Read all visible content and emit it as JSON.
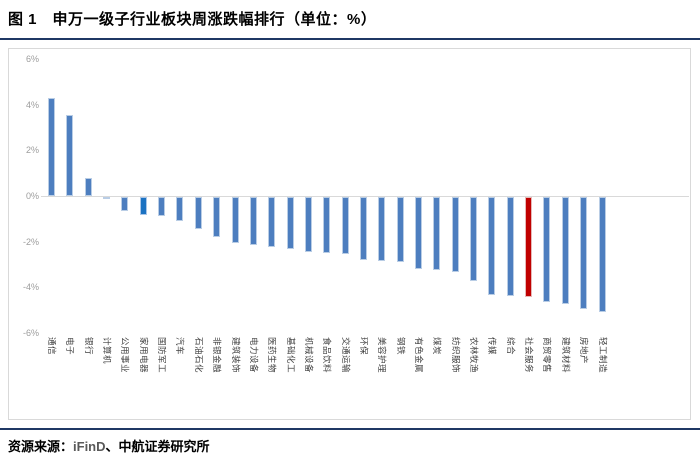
{
  "figure": {
    "title": "图 1　申万一级子行业板块周涨跌幅排行（单位：%）"
  },
  "source": {
    "prefix": "资源来源：",
    "vendor": "iFinD",
    "suffix": "、中航证券研究所"
  },
  "colors": {
    "rule": "#1f3864",
    "bar_fill": "#4d7ebf",
    "bar_border": "#b9cde5",
    "highlight_blue_fill": "#1b72c2",
    "highlight_blue_border": "#a9c6e8",
    "highlight_red_fill": "#c00000",
    "highlight_red_border": "#e6b8b7",
    "zero_line": "#d9d9d9",
    "chart_border": "#d9d9d9",
    "axis_tick_color": "#9d9d9d",
    "category_color": "#3f3f3f",
    "vendor_color": "#595959"
  },
  "chart_data": {
    "type": "bar",
    "title": "申万一级子行业板块周涨跌幅排行",
    "unit": "%",
    "ylim": [
      -6,
      6
    ],
    "ytick_labels": [
      "6%",
      "4%",
      "2%",
      "0%",
      "-2%",
      "-4%",
      "-6%"
    ],
    "ytick_values": [
      6,
      4,
      2,
      0,
      -2,
      -4,
      -6
    ],
    "grid": false,
    "legend": "none",
    "categories": [
      "通信",
      "电子",
      "银行",
      "计算机",
      "公用事业",
      "家用电器",
      "国防军工",
      "汽车",
      "石油石化",
      "非银金融",
      "建筑装饰",
      "电力设备",
      "医药生物",
      "基础化工",
      "机械设备",
      "食品饮料",
      "交通运输",
      "环保",
      "美容护理",
      "钢铁",
      "有色金属",
      "煤炭",
      "纺织服饰",
      "农林牧渔",
      "传媒",
      "综合",
      "社会服务",
      "商贸零售",
      "建筑材料",
      "房地产",
      "轻工制造"
    ],
    "values": [
      4.3,
      3.55,
      0.8,
      -0.05,
      -0.6,
      -0.8,
      -0.85,
      -1.05,
      -1.4,
      -1.75,
      -2.0,
      -2.1,
      -2.2,
      -2.3,
      -2.4,
      -2.45,
      -2.5,
      -2.75,
      -2.8,
      -2.85,
      -3.15,
      -3.2,
      -3.3,
      -3.7,
      -4.3,
      -4.35,
      -4.4,
      -4.6,
      -4.7,
      -4.9,
      -5.05
    ],
    "highlight": {
      "blue_index": 5,
      "red_index": 26
    }
  }
}
